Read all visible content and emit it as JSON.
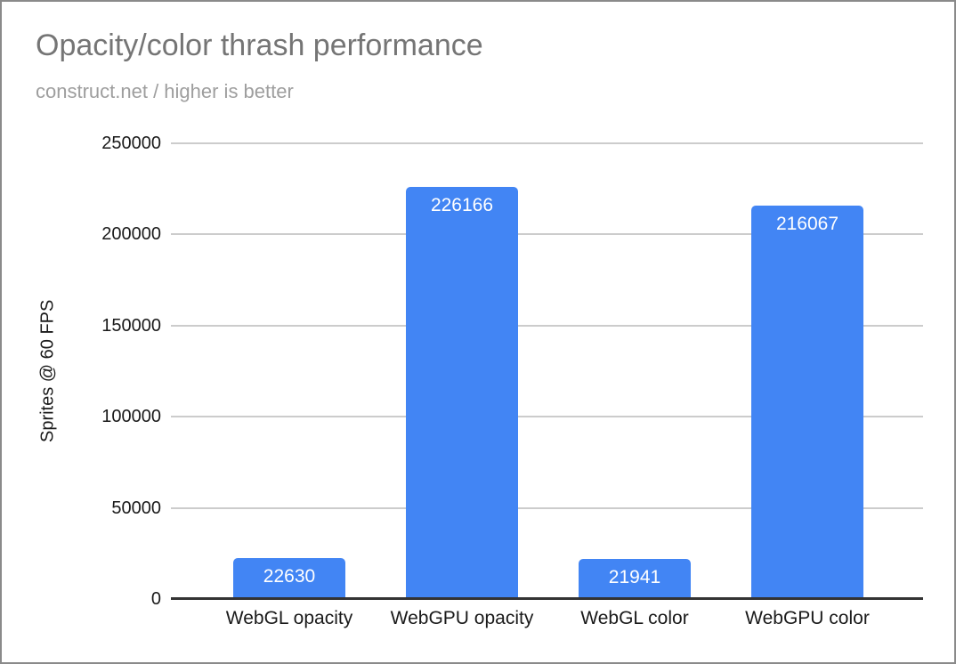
{
  "frame": {
    "border_color": "#8a8a8a",
    "background": "#ffffff"
  },
  "chart_data": {
    "type": "bar",
    "title": "Opacity/color thrash performance",
    "subtitle": "construct.net / higher is better",
    "xlabel": "",
    "ylabel": "Sprites @ 60 FPS",
    "categories": [
      "WebGL opacity",
      "WebGPU opacity",
      "WebGL color",
      "WebGPU color"
    ],
    "values": [
      22630,
      226166,
      21941,
      216067
    ],
    "value_labels": [
      "22630",
      "226166",
      "21941",
      "216067"
    ],
    "ylim": [
      0,
      250000
    ],
    "yticks": [
      0,
      50000,
      100000,
      150000,
      200000,
      250000
    ],
    "ytick_labels": [
      "0",
      "50000",
      "100000",
      "150000",
      "200000",
      "250000"
    ],
    "grid": true,
    "legend_position": "none",
    "colors": {
      "bar": "#4285f4",
      "value_label": "#ffffff",
      "gridline": "#cccccc",
      "baseline": "#333333",
      "title": "#757575",
      "subtitle": "#9e9e9e",
      "axis_text": "#1a1a1a"
    }
  }
}
